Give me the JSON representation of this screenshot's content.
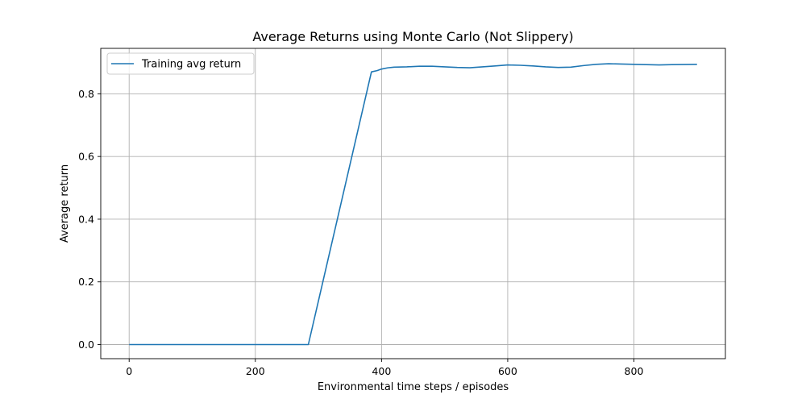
{
  "chart_data": {
    "type": "line",
    "title": "Average Returns using Monte Carlo (Not Slippery)",
    "xlabel": "Environmental time steps / episodes",
    "ylabel": "Average return",
    "xlim": [
      -45,
      945
    ],
    "ylim": [
      -0.045,
      0.945
    ],
    "xticks": [
      0,
      200,
      400,
      600,
      800
    ],
    "yticks": [
      0.0,
      0.2,
      0.4,
      0.6,
      0.8
    ],
    "xtick_labels": [
      "0",
      "200",
      "400",
      "600",
      "800"
    ],
    "ytick_labels": [
      "0.0",
      "0.2",
      "0.4",
      "0.6",
      "0.8"
    ],
    "grid": true,
    "legend_position": "top-left",
    "series": [
      {
        "name": "Training avg return",
        "color": "#1f77b4",
        "x": [
          0,
          284,
          384,
          393,
          400,
          410,
          420,
          440,
          460,
          480,
          500,
          520,
          540,
          560,
          580,
          600,
          620,
          640,
          660,
          680,
          700,
          720,
          740,
          760,
          780,
          800,
          820,
          840,
          860,
          900
        ],
        "y": [
          0.0,
          0.0,
          0.87,
          0.874,
          0.879,
          0.883,
          0.885,
          0.886,
          0.888,
          0.888,
          0.886,
          0.884,
          0.883,
          0.886,
          0.889,
          0.892,
          0.891,
          0.889,
          0.886,
          0.884,
          0.885,
          0.89,
          0.894,
          0.896,
          0.895,
          0.894,
          0.893,
          0.892,
          0.893,
          0.894
        ]
      }
    ]
  }
}
